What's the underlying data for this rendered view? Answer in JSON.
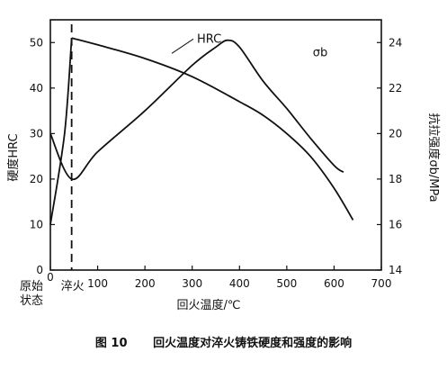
{
  "caption": {
    "figure_no": "图 10",
    "text": "回火温度对淬火铸铁硬度和强度的影响"
  },
  "chart_data": {
    "type": "line",
    "xlabel": "回火温度/℃",
    "ylabel_left": "硬度HRC",
    "ylabel_right": "抗拉强度σb/MPa",
    "xlim": [
      0,
      700
    ],
    "ylim_left": [
      0,
      55
    ],
    "ylim_right": [
      14,
      25
    ],
    "x_ticks": [
      "0",
      "100",
      "200",
      "300",
      "400",
      "500",
      "600",
      "700"
    ],
    "y_left_ticks": [
      "0",
      "10",
      "20",
      "30",
      "40",
      "50"
    ],
    "y_right_ticks": [
      "14",
      "16",
      "18",
      "20",
      "22",
      "24"
    ],
    "x_extra_labels": {
      "original_state": "原始\n状态",
      "quench": "淬火"
    },
    "quench_line_x": 45,
    "series": [
      {
        "name": "HRC",
        "axis": "left",
        "points": [
          [
            45,
            51
          ],
          [
            100,
            49.5
          ],
          [
            200,
            46.5
          ],
          [
            300,
            42.5
          ],
          [
            400,
            37
          ],
          [
            450,
            34
          ],
          [
            500,
            30
          ],
          [
            550,
            25
          ],
          [
            600,
            18
          ],
          [
            640,
            11
          ]
        ]
      },
      {
        "name": "σb",
        "axis": "right",
        "points": [
          [
            0,
            20
          ],
          [
            45,
            18
          ],
          [
            100,
            19.2
          ],
          [
            200,
            21
          ],
          [
            300,
            23
          ],
          [
            350,
            23.8
          ],
          [
            375,
            24.1
          ],
          [
            400,
            23.8
          ],
          [
            450,
            22.3
          ],
          [
            500,
            21.1
          ],
          [
            550,
            19.8
          ],
          [
            600,
            18.6
          ],
          [
            620,
            18.3
          ]
        ]
      },
      {
        "name": "",
        "axis": "left",
        "style": "dashed",
        "points": [
          [
            0,
            10
          ],
          [
            30,
            30
          ],
          [
            45,
            51
          ]
        ]
      }
    ],
    "annotations": [
      {
        "text": "HRC",
        "x": 310,
        "y": 50
      },
      {
        "text": "σb",
        "x": 555,
        "y": 23.4
      }
    ]
  }
}
